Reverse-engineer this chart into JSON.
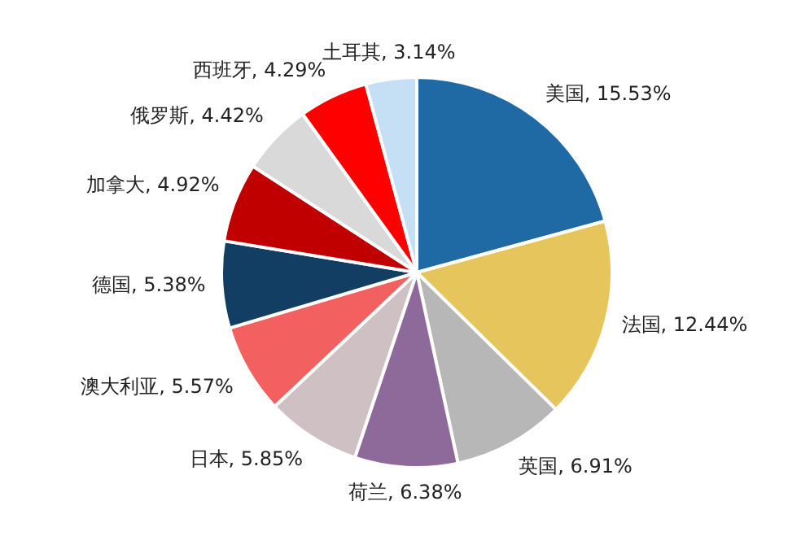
{
  "chart_data": {
    "type": "pie",
    "categories": [
      "美国",
      "法国",
      "英国",
      "荷兰",
      "日本",
      "澳大利亚",
      "德国",
      "加拿大",
      "俄罗斯",
      "西班牙",
      "土耳其"
    ],
    "values": [
      15.53,
      12.44,
      6.91,
      6.38,
      5.85,
      5.57,
      5.38,
      4.92,
      4.42,
      4.29,
      3.14
    ],
    "value_labels": [
      "15.53%",
      "12.44%",
      "6.91%",
      "6.38%",
      "5.85%",
      "5.57%",
      "5.38%",
      "4.92%",
      "4.42%",
      "4.29%",
      "3.14%"
    ],
    "colors": [
      "#1f6aa5",
      "#e6c65c",
      "#b7b7b7",
      "#8e6a9a",
      "#cfc1c3",
      "#f26060",
      "#123e63",
      "#c00000",
      "#d9d9d9",
      "#ff0000",
      "#c5e0f5"
    ],
    "legend": false
  }
}
